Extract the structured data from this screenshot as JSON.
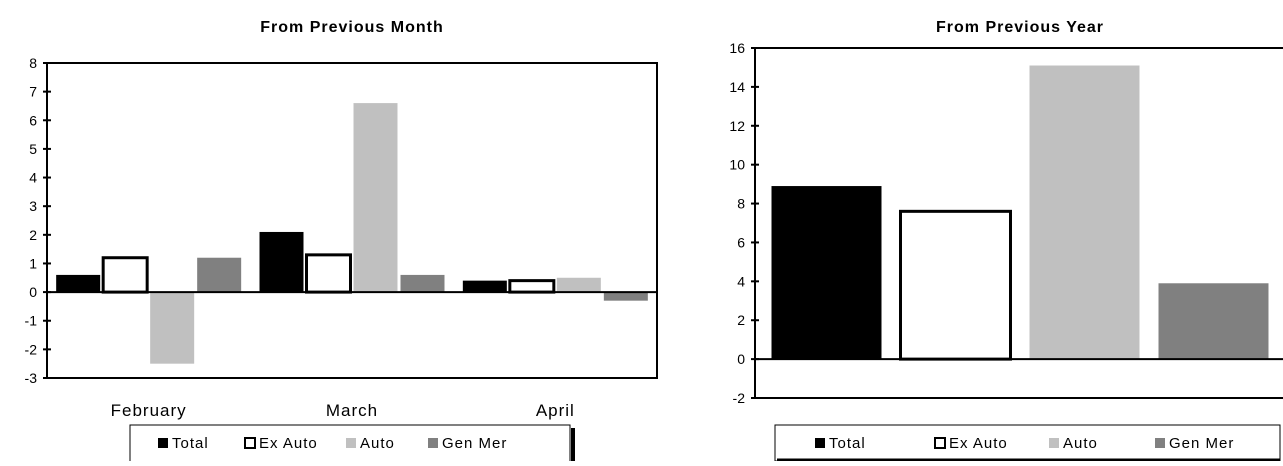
{
  "chart_data": [
    {
      "type": "bar",
      "title": "From Previous Month",
      "categories": [
        "February",
        "March",
        "April"
      ],
      "series": [
        {
          "name": "Total",
          "values": [
            0.6,
            2.1,
            0.4
          ],
          "color": "#000000"
        },
        {
          "name": "Ex Auto",
          "values": [
            1.2,
            1.3,
            0.4
          ],
          "color": "#ffffff"
        },
        {
          "name": "Auto",
          "values": [
            -2.5,
            6.6,
            0.5
          ],
          "color": "#c0c0c0"
        },
        {
          "name": "Gen Mer",
          "values": [
            1.2,
            0.6,
            -0.3
          ],
          "color": "#808080"
        }
      ],
      "yticks": [
        "8",
        "7",
        "6",
        "5",
        "4",
        "3",
        "2",
        "1",
        "0",
        "-1",
        "-2",
        "-3"
      ],
      "ylim": [
        -3,
        8
      ],
      "xlabel": "",
      "ylabel": "",
      "legend": "bottom"
    },
    {
      "type": "bar",
      "title": "From Previous Year",
      "categories": [
        ""
      ],
      "series": [
        {
          "name": "Total",
          "values": [
            8.9
          ],
          "color": "#000000"
        },
        {
          "name": "Ex Auto",
          "values": [
            7.6
          ],
          "color": "#ffffff"
        },
        {
          "name": "Auto",
          "values": [
            15.1
          ],
          "color": "#c0c0c0"
        },
        {
          "name": "Gen Mer",
          "values": [
            3.9
          ],
          "color": "#808080"
        }
      ],
      "yticks": [
        "16",
        "14",
        "12",
        "10",
        "8",
        "6",
        "4",
        "2",
        "0",
        "-2"
      ],
      "ylim": [
        -2,
        16
      ],
      "xlabel": "",
      "ylabel": "",
      "legend": "bottom"
    }
  ]
}
